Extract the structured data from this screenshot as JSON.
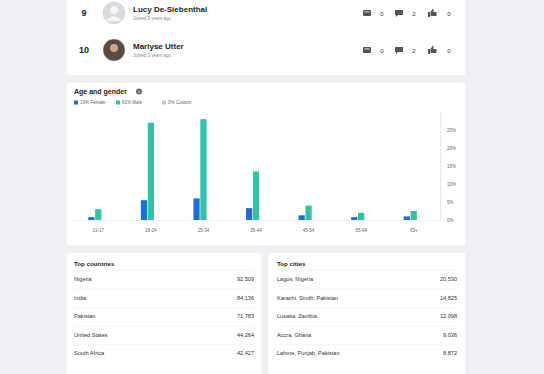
{
  "users": [
    {
      "rank": "9",
      "name": "Lucy De-Siebenthal",
      "joined": "Joined 3 years ago",
      "stats": [
        "0",
        "2",
        "0"
      ]
    },
    {
      "rank": "10",
      "name": "Marlyse Utter",
      "joined": "Joined 3 years ago",
      "stats": [
        "0",
        "2",
        "0"
      ]
    }
  ],
  "chart_data": {
    "type": "bar",
    "title": "Age and gender",
    "categories": [
      "13-17",
      "18-24",
      "25-34",
      "35-44",
      "45-54",
      "55-64",
      "65+"
    ],
    "series": [
      {
        "name": "19% Female",
        "color": "#1f6fd6",
        "values": [
          0.8,
          5.5,
          6,
          3.3,
          1.3,
          0.8,
          1
        ]
      },
      {
        "name": "81% Male",
        "color": "#2ec4a6",
        "values": [
          3,
          27,
          28,
          13.5,
          4,
          2,
          2.5
        ]
      },
      {
        "name": "0% Custom",
        "color": "#c9cbcf",
        "values": [
          0,
          0,
          0,
          0,
          0,
          0,
          0
        ]
      }
    ],
    "ylim": [
      0,
      30
    ],
    "yticks": [
      {
        "value": 0,
        "label": "0%"
      },
      {
        "value": 5,
        "label": "5%"
      },
      {
        "value": 10,
        "label": "10%"
      },
      {
        "value": 15,
        "label": "15%"
      },
      {
        "value": 20,
        "label": "20%"
      },
      {
        "value": 25,
        "label": "25%"
      }
    ],
    "grid": false
  },
  "top_countries": {
    "title": "Top countries",
    "rows": [
      [
        "Nigeria",
        "92,509"
      ],
      [
        "India",
        "84,136"
      ],
      [
        "Pakistan",
        "71,783"
      ],
      [
        "United States",
        "44,264"
      ],
      [
        "South Africa",
        "42,427"
      ]
    ]
  },
  "top_cities": {
    "title": "Top cities",
    "rows": [
      [
        "Lagos, Nigeria",
        "20,530"
      ],
      [
        "Karachi, Sindh, Pakistan",
        "14,825"
      ],
      [
        "Lusaka, Zambia",
        "12,098"
      ],
      [
        "Accra, Ghana",
        "9,036"
      ],
      [
        "Lahore, Punjab, Pakistan",
        "8,872"
      ]
    ]
  }
}
